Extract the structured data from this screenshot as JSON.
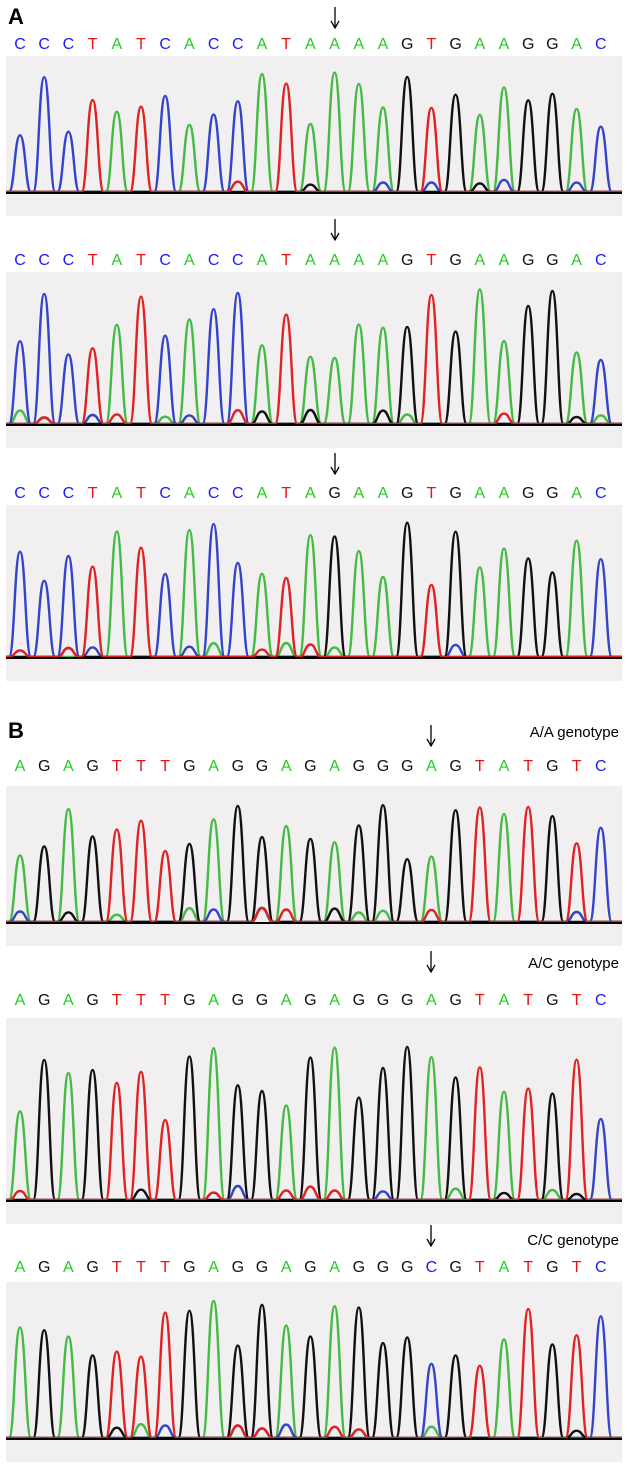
{
  "panels": [
    {
      "label": "A",
      "tracks": [
        {
          "genotype": "",
          "arrow_index": 13,
          "sequence": [
            "C",
            "C",
            "C",
            "T",
            "A",
            "T",
            "C",
            "A",
            "C",
            "C",
            "A",
            "T",
            "A",
            "A",
            "A",
            "A",
            "G",
            "T",
            "G",
            "A",
            "A",
            "G",
            "G",
            "A",
            "C"
          ]
        },
        {
          "genotype": "",
          "arrow_index": 13,
          "sequence": [
            "C",
            "C",
            "C",
            "T",
            "A",
            "T",
            "C",
            "A",
            "C",
            "C",
            "A",
            "T",
            "A",
            "A",
            "A",
            "A",
            "G",
            "T",
            "G",
            "A",
            "A",
            "G",
            "G",
            "A",
            "C"
          ]
        },
        {
          "genotype": "",
          "arrow_index": 13,
          "sequence": [
            "C",
            "C",
            "C",
            "T",
            "A",
            "T",
            "C",
            "A",
            "C",
            "C",
            "A",
            "T",
            "A",
            "G",
            "A",
            "A",
            "G",
            "T",
            "G",
            "A",
            "A",
            "G",
            "G",
            "A",
            "C"
          ]
        }
      ]
    },
    {
      "label": "B",
      "tracks": [
        {
          "genotype": "A/A genotype",
          "arrow_index": 17,
          "sequence": [
            "A",
            "G",
            "A",
            "G",
            "T",
            "T",
            "T",
            "G",
            "A",
            "G",
            "G",
            "A",
            "G",
            "A",
            "G",
            "G",
            "G",
            "A",
            "G",
            "T",
            "A",
            "T",
            "G",
            "T",
            "C"
          ]
        },
        {
          "genotype": "A/C genotype",
          "arrow_index": 17,
          "sequence": [
            "A",
            "G",
            "A",
            "G",
            "T",
            "T",
            "T",
            "G",
            "A",
            "G",
            "G",
            "A",
            "G",
            "A",
            "G",
            "G",
            "G",
            "A",
            "G",
            "T",
            "A",
            "T",
            "G",
            "T",
            "C"
          ]
        },
        {
          "genotype": "C/C genotype",
          "arrow_index": 17,
          "sequence": [
            "A",
            "G",
            "A",
            "G",
            "T",
            "T",
            "T",
            "G",
            "A",
            "G",
            "G",
            "A",
            "G",
            "A",
            "G",
            "G",
            "G",
            "C",
            "G",
            "T",
            "A",
            "T",
            "G",
            "T",
            "C"
          ]
        }
      ]
    }
  ],
  "base_colors": {
    "A": "#22cc22",
    "C": "#1a1aff",
    "G": "#111111",
    "T": "#ee1111"
  },
  "peak_color_names": {
    "A": "#44bb44",
    "C": "#3344cc",
    "G": "#111111",
    "T": "#e02222"
  }
}
